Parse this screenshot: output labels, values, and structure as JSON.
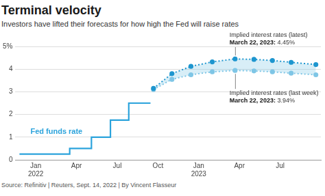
{
  "chart_data": {
    "type": "line",
    "title": "Terminal velocity",
    "subtitle": "Investors have lifted their forecasts for how high the Fed will raise rates",
    "source": "Source: Refinitiv | Reuters, Sept. 14, 2022 | By Vincent Flasseur",
    "xlim": [
      -1.5,
      21
    ],
    "xticks": [
      {
        "value": 0,
        "label": "Jan 2022"
      },
      {
        "value": 3,
        "label": "Apr"
      },
      {
        "value": 6,
        "label": "Jul"
      },
      {
        "value": 9,
        "label": "Oct"
      },
      {
        "value": 12,
        "label": "Jan 2023"
      },
      {
        "value": 15,
        "label": "Apr"
      },
      {
        "value": 18,
        "label": "Jul"
      }
    ],
    "ylim": [
      0,
      5
    ],
    "yticks": [
      0,
      1,
      2,
      3,
      4,
      {
        "value": 5,
        "label": "5%"
      }
    ],
    "grid": true,
    "series": [
      {
        "name": "Fed funds rate",
        "type": "step",
        "color": "#2ba3dc",
        "line_style": "solid",
        "marker": "none",
        "x": [
          -1.2,
          2.5,
          4.1,
          5.5,
          6.85,
          8.45
        ],
        "values": [
          0.25,
          0.5,
          1.0,
          1.75,
          2.5,
          2.5
        ]
      },
      {
        "name": "Implied interest rates (latest)",
        "type": "line",
        "color": "#1e96cf",
        "line_style": "dotted",
        "marker": "circle",
        "x": [
          8.67,
          10.03,
          11.43,
          13.0,
          14.68,
          16.07,
          17.43,
          18.81,
          20.63
        ],
        "values": [
          3.15,
          3.8,
          4.12,
          4.32,
          4.45,
          4.43,
          4.38,
          4.3,
          4.2
        ],
        "annotation": {
          "text": "March 22, 2023:",
          "x": 14.68,
          "value": 4.45,
          "value_label": "4.45%"
        }
      },
      {
        "name": "Implied interest rates (last week)",
        "type": "line",
        "color": "#7fc6e6",
        "line_style": "dotted",
        "marker": "circle",
        "x": [
          8.67,
          10.03,
          11.43,
          13.0,
          14.68,
          16.07,
          17.43,
          18.81,
          20.63
        ],
        "values": [
          3.1,
          3.55,
          3.75,
          3.88,
          3.94,
          3.92,
          3.88,
          3.82,
          3.75
        ],
        "annotation": {
          "text": "March 22, 2023:",
          "x": 14.68,
          "value": 3.94,
          "value_label": "3.94%"
        }
      }
    ]
  }
}
